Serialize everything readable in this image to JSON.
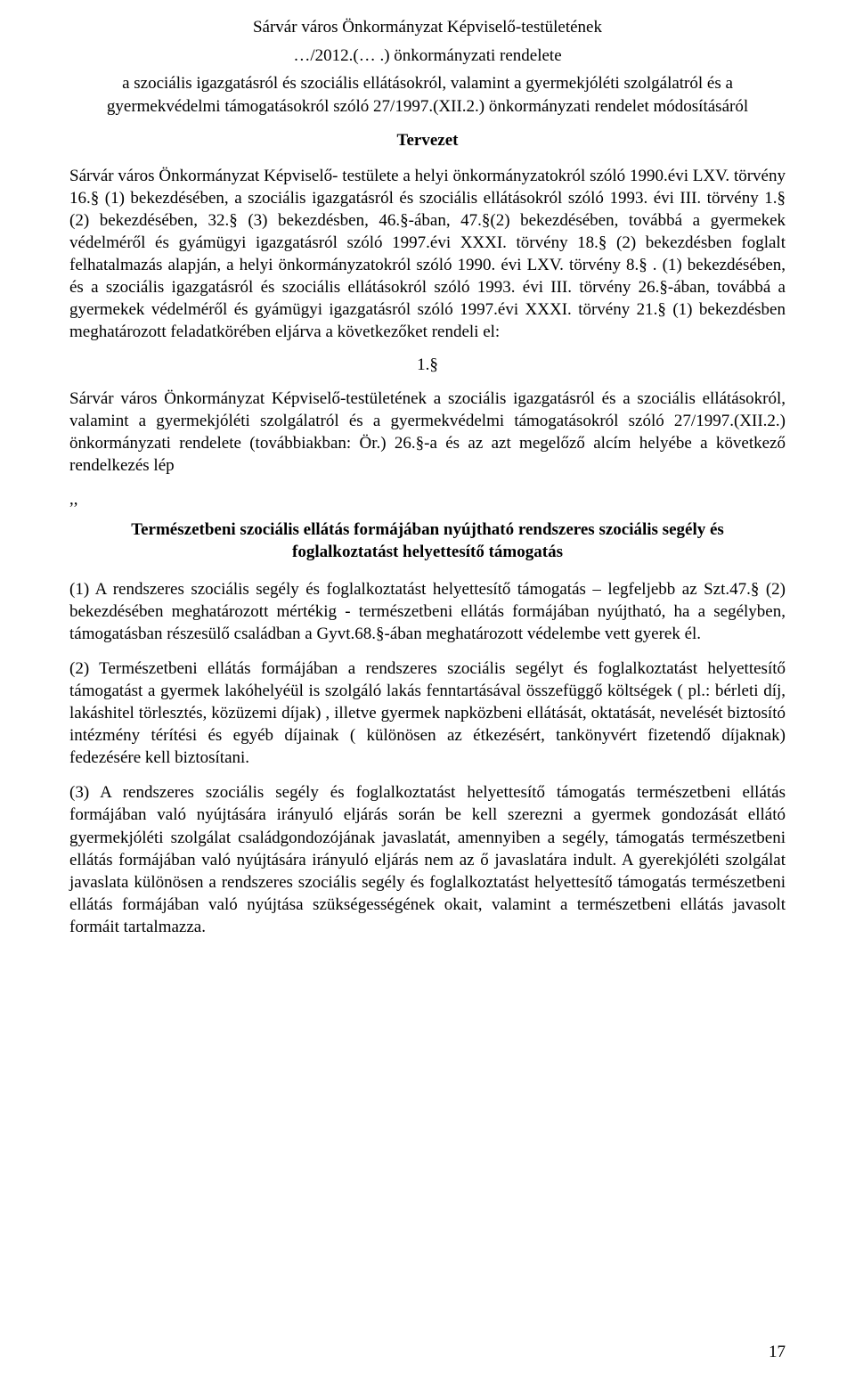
{
  "header": {
    "line1": "Sárvár város Önkormányzat Képviselő-testületének",
    "line2": "…/2012.(… .) önkormányzati rendelete",
    "line3": "a szociális igazgatásról és szociális ellátásokról, valamint a gyermekjóléti szolgálatról és a gyermekvédelmi támogatásokról szóló 27/1997.(XII.2.) önkormányzati rendelet módosításáról",
    "tervezet": "Tervezet"
  },
  "intro": "Sárvár város Önkormányzat Képviselő- testülete a helyi önkormányzatokról szóló 1990.évi LXV. törvény 16.§ (1) bekezdésében, a szociális igazgatásról és szociális ellátásokról szóló 1993. évi III. törvény 1.§ (2) bekezdésében, 32.§ (3) bekezdésben, 46.§-ában, 47.§(2) bekezdésében, továbbá a gyermekek védelméről és gyámügyi igazgatásról szóló 1997.évi XXXI. törvény 18.§ (2) bekezdésben foglalt felhatalmazás alapján, a helyi önkormányzatokról szóló 1990. évi LXV. törvény 8.§ . (1) bekezdésében, és a szociális igazgatásról és szociális ellátásokról szóló 1993. évi III. törvény 26.§-ában, továbbá a gyermekek védelméről és gyámügyi igazgatásról szóló 1997.évi XXXI. törvény 21.§ (1) bekezdésben meghatározott feladatkörében eljárva a következőket rendeli el:",
  "section": {
    "num": "1.§"
  },
  "para1": "Sárvár város Önkormányzat Képviselő-testületének a szociális igazgatásról és a szociális ellátásokról, valamint a gyermekjóléti szolgálatról és a gyermekvédelmi támogatásokról szóló 27/1997.(XII.2.) önkormányzati rendelete (továbbiakban: Ör.) 26.§-a és az azt megelőző alcím helyébe a következő rendelkezés lép",
  "quote": ",,",
  "sub": {
    "line1": "Természetbeni szociális ellátás formájában nyújtható rendszeres szociális segély és",
    "line2": "foglalkoztatást helyettesítő támogatás"
  },
  "n1": "(1) A rendszeres szociális segély és foglalkoztatást helyettesítő támogatás – legfeljebb az Szt.47.§ (2) bekezdésében meghatározott mértékig - természetbeni ellátás formájában nyújtható, ha a segélyben, támogatásban részesülő családban a Gyvt.68.§-ában meghatározott védelembe vett gyerek él.",
  "n2": "(2) Természetbeni ellátás formájában a rendszeres szociális segélyt és foglalkoztatást helyettesítő támogatást a gyermek lakóhelyéül is szolgáló lakás fenntartásával összefüggő költségek ( pl.: bérleti díj, lakáshitel törlesztés, közüzemi díjak) , illetve gyermek napközbeni ellátását, oktatását, nevelését biztosító intézmény térítési és egyéb díjainak ( különösen az étkezésért, tankönyvért fizetendő díjaknak) fedezésére kell biztosítani.",
  "n3": "(3) A rendszeres szociális segély és foglalkoztatást helyettesítő támogatás természetbeni ellátás formájában való nyújtására irányuló eljárás során be kell szerezni a gyermek gondozását ellátó gyermekjóléti szolgálat családgondozójának javaslatát, amennyiben a segély, támogatás természetbeni ellátás formájában való nyújtására irányuló eljárás nem az ő javaslatára indult. A gyerekjóléti szolgálat javaslata különösen a rendszeres szociális segély és foglalkoztatást helyettesítő támogatás természetbeni ellátás formájában való nyújtása szükségességének okait, valamint a természetbeni ellátás javasolt formáit tartalmazza.",
  "pagenum": "17"
}
